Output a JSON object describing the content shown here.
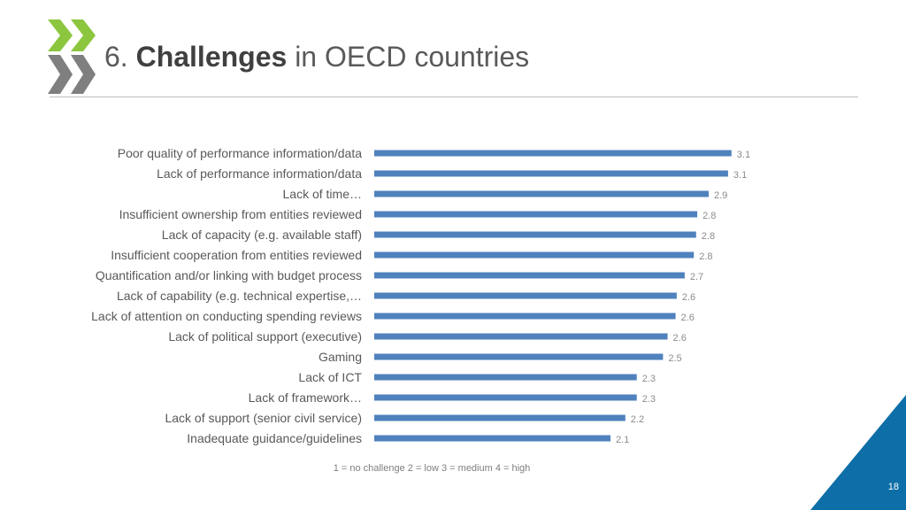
{
  "slide": {
    "title_number": "6.",
    "title_bold": "Challenges",
    "title_rest": "in OECD countries",
    "scale_note": "1 = no challenge   2 =  low   3 = medium   4 = high",
    "page_number": "18"
  },
  "colors": {
    "bar": "#4f81bd",
    "logo_green": "#8cc63f",
    "logo_gray": "#7f7f7f",
    "corner_blue": "#0e6ea8"
  },
  "chart_data": {
    "type": "bar",
    "orientation": "horizontal",
    "categories": [
      "Poor quality of performance information/data",
      "Lack of performance information/data",
      "Lack of time…",
      "Insufficient ownership from entities reviewed",
      "Lack of capacity (e.g. available staff)",
      "Insufficient cooperation from entities reviewed",
      "Quantification and/or linking with budget process",
      "Lack of capability (e.g. technical expertise,…",
      "Lack of attention on conducting spending reviews",
      "Lack of political support  (executive)",
      "Gaming",
      "Lack of ICT",
      "Lack of framework…",
      "Lack of support (senior civil service)",
      "Inadequate guidance/guidelines"
    ],
    "values": [
      3.13,
      3.1,
      2.93,
      2.83,
      2.82,
      2.8,
      2.72,
      2.65,
      2.64,
      2.57,
      2.53,
      2.3,
      2.3,
      2.2,
      2.07
    ],
    "data_labels": [
      "3.1",
      "3.1",
      "2.9",
      "2.8",
      "2.8",
      "2.8",
      "2.7",
      "2.6",
      "2.6",
      "2.6",
      "2.5",
      "2.3",
      "2.3",
      "2.2",
      "2.1"
    ],
    "xlim": [
      0,
      4
    ],
    "grid": false,
    "legend": "none"
  }
}
